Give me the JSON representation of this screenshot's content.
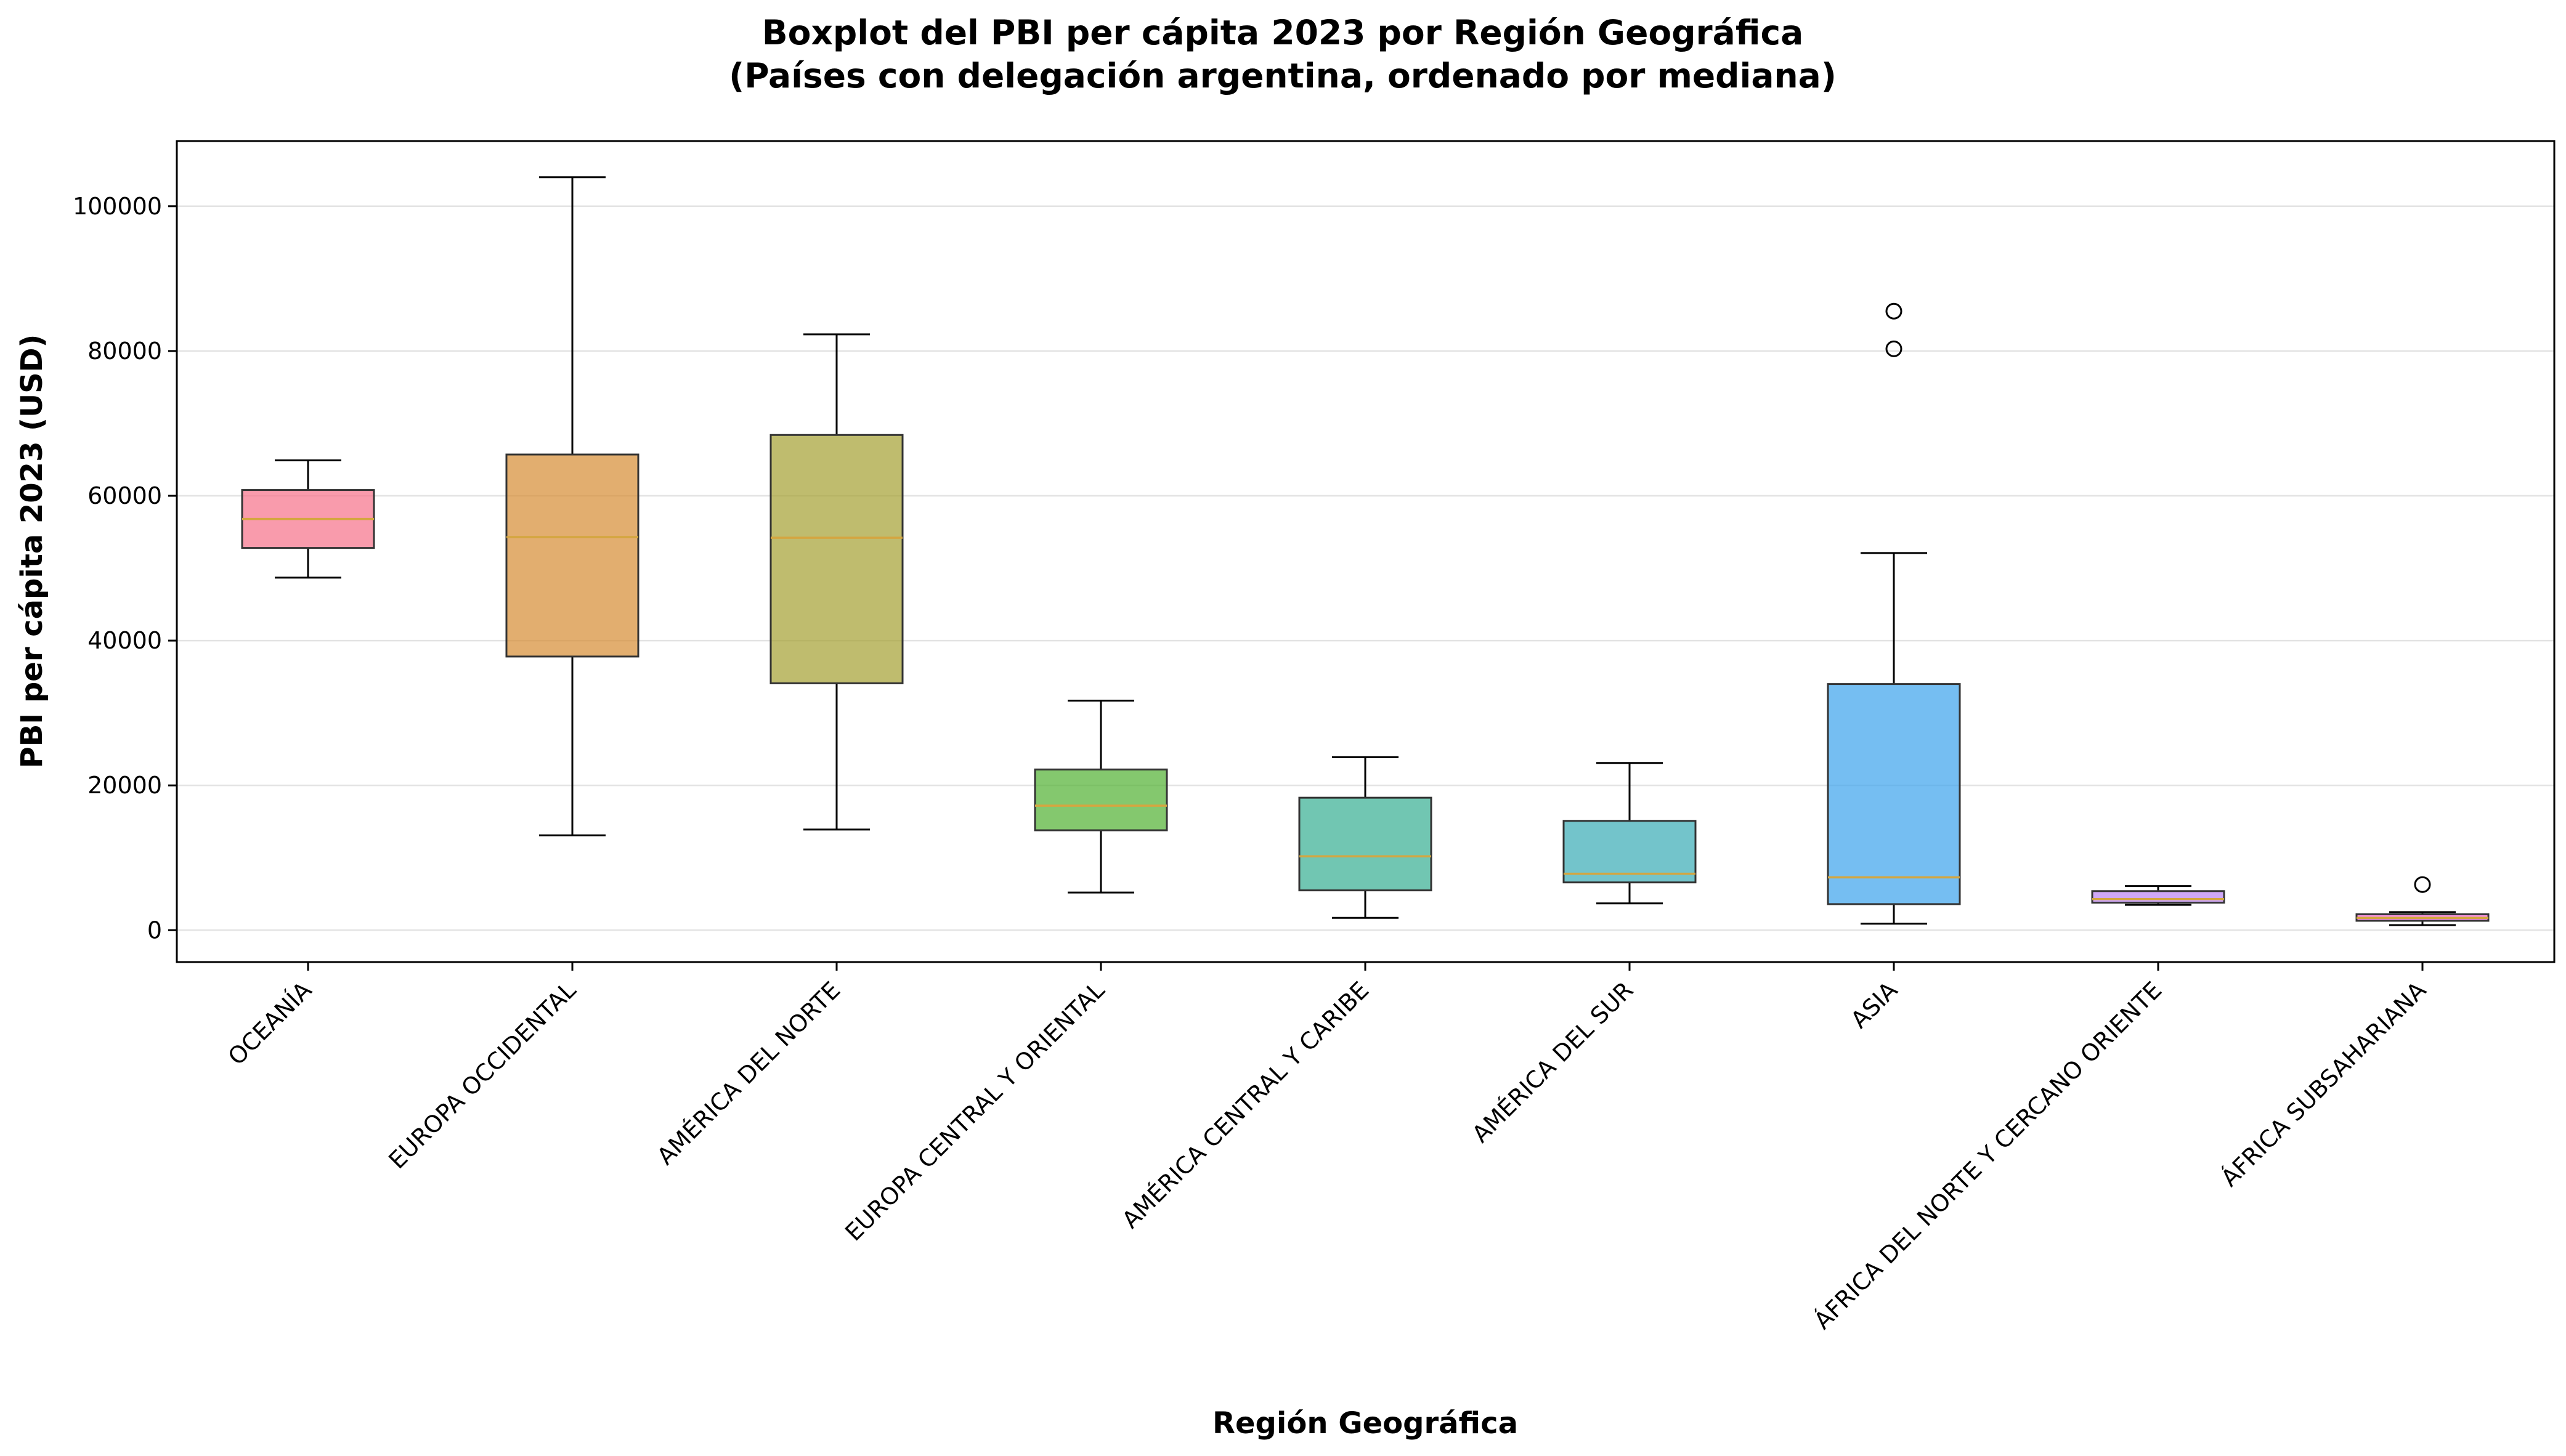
{
  "chart_data": {
    "type": "boxplot",
    "title": "Boxplot del PBI per cápita 2023 por Región Geográfica",
    "subtitle": "(Países con delegación argentina, ordenado por mediana)",
    "xlabel": "Región Geográfica",
    "ylabel": "PBI per cápita 2023 (USD)",
    "ylim": [
      -4400,
      109000
    ],
    "yticks": [
      0,
      20000,
      40000,
      60000,
      80000,
      100000
    ],
    "ytick_labels": [
      "0",
      "20000",
      "40000",
      "60000",
      "80000",
      "100000"
    ],
    "grid": "y",
    "median_color": "#d4a640",
    "categories": [
      "OCEANÍA",
      "EUROPA OCCIDENTAL",
      "AMÉRICA DEL NORTE",
      "EUROPA CENTRAL Y ORIENTAL",
      "AMÉRICA CENTRAL Y CARIBE",
      "AMÉRICA DEL SUR",
      "ASIA",
      "ÁFRICA DEL NORTE Y CERCANO ORIENTE",
      "ÁFRICA SUBSAHARIANA"
    ],
    "boxes": [
      {
        "whislo": 48700,
        "q1": 52800,
        "median": 56800,
        "q3": 60800,
        "whishi": 64900,
        "fliers": [],
        "color": "#f77189"
      },
      {
        "whislo": 13100,
        "q1": 37800,
        "median": 54300,
        "q3": 65700,
        "whishi": 104000,
        "fliers": [],
        "color": "#d58c32"
      },
      {
        "whislo": 13900,
        "q1": 34100,
        "median": 54200,
        "q3": 68400,
        "whishi": 82300,
        "fliers": [],
        "color": "#a4a031"
      },
      {
        "whislo": 5200,
        "q1": 13800,
        "median": 17200,
        "q3": 22200,
        "whishi": 31700,
        "fliers": [],
        "color": "#50b131"
      },
      {
        "whislo": 1700,
        "q1": 5500,
        "median": 10200,
        "q3": 18300,
        "whishi": 23900,
        "fliers": [],
        "color": "#34ae91"
      },
      {
        "whislo": 3700,
        "q1": 6600,
        "median": 7800,
        "q3": 15100,
        "whishi": 23100,
        "fliers": [],
        "color": "#37abb5"
      },
      {
        "whislo": 900,
        "q1": 3600,
        "median": 7300,
        "q3": 34000,
        "whishi": 52100,
        "fliers": [
          80300,
          85500
        ],
        "color": "#3ba3ec"
      },
      {
        "whislo": 3500,
        "q1": 3800,
        "median": 4300,
        "q3": 5400,
        "whishi": 6100,
        "fliers": [],
        "color": "#bb83f4"
      },
      {
        "whislo": 700,
        "q1": 1300,
        "median": 1700,
        "q3": 2200,
        "whishi": 2500,
        "fliers": [
          6300
        ],
        "color": "#f564d4"
      }
    ]
  }
}
